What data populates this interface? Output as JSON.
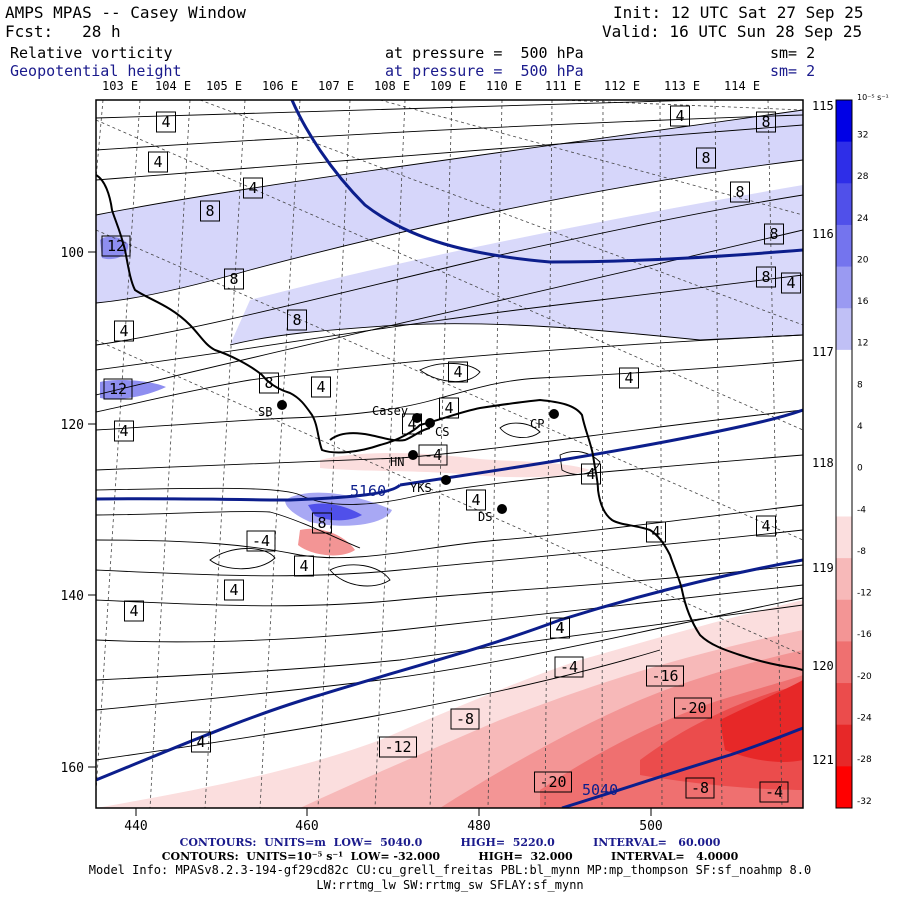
{
  "header": {
    "model_title": "AMPS MPAS -- Casey Window",
    "init": "Init: 12 UTC Sat 27 Sep 25",
    "forecast": "Fcst:   28 h",
    "valid": "Valid: 16 UTC Sun 28 Sep 25",
    "field1": {
      "name": "Relative vorticity",
      "level": "at pressure =  500 hPa",
      "smooth": "sm= 2"
    },
    "field2": {
      "name": "Geopotential height",
      "level": "at pressure =  500 hPa",
      "smooth": "sm= 2"
    }
  },
  "map": {
    "top_lon_labels": [
      "103 E",
      "104 E",
      "105 E",
      "106 E",
      "107 E",
      "108 E",
      "109 E",
      "110 E",
      "111 E",
      "112 E",
      "113 E",
      "114 E"
    ],
    "right_lon_labels": [
      "115 E",
      "116 E",
      "117 E",
      "118 E",
      "119 E",
      "120 E",
      "121 E"
    ],
    "y_ticks": [
      "100",
      "120",
      "140",
      "160"
    ],
    "x_ticks": [
      "440",
      "460",
      "480",
      "500"
    ],
    "stations": [
      {
        "code": "Casey"
      },
      {
        "code": "CS"
      },
      {
        "code": "CP"
      },
      {
        "code": "SB"
      },
      {
        "code": "HN"
      },
      {
        "code": "YKS"
      },
      {
        "code": "DS"
      }
    ],
    "height_labels": [
      "5160",
      "5040"
    ],
    "vorticity_labels": [
      "4",
      "4",
      "4",
      "4",
      "8",
      "8",
      "8",
      "8",
      "8",
      "12",
      "8",
      "8",
      "8",
      "4",
      "12",
      "4",
      "8",
      "4",
      "4",
      "4",
      "4",
      "4",
      "4",
      "-4",
      "4",
      "4",
      "8",
      "-4",
      "4",
      "4",
      "4",
      "4",
      "4",
      "4",
      "4",
      "-4",
      "-16",
      "-8",
      "-20",
      "-12",
      "-20",
      "-8",
      "-4",
      "4"
    ]
  },
  "colorbar": {
    "unit": "10⁻⁵ s⁻¹",
    "labels": [
      "32",
      "28",
      "24",
      "20",
      "16",
      "12",
      "8",
      "4",
      "0",
      "-4",
      "-8",
      "-12",
      "-16",
      "-20",
      "-24",
      "-28",
      "-32"
    ],
    "colors": [
      "#0000e6",
      "#2e2ee8",
      "#5050ea",
      "#7474ee",
      "#9a9af2",
      "#c0c0f6",
      "#ffffff",
      "#ffffff",
      "#ffffff",
      "#ffffff",
      "#fbdede",
      "#f7b9b9",
      "#f39595",
      "#ef7070",
      "#eb4c4c",
      "#e72828",
      "#ff0000"
    ]
  },
  "footer": {
    "line1": "CONTOURS:  UNITS=m  LOW=  5040.0          HIGH=  5220.0          INTERVAL=   60.000",
    "line2": "CONTOURS:  UNITS=10⁻⁵ s⁻¹  LOW= -32.000          HIGH=  32.000          INTERVAL=   4.0000",
    "line3": "Model Info: MPASv8.2.3-194-gf29cd82c CU:cu_grell_freitas PBL:bl_mynn MP:mp_thompson SF:sf_noahmp 8.0",
    "line4": "LW:rrtmg_lw SW:rrtmg_sw SFLAY:sf_mynn"
  }
}
